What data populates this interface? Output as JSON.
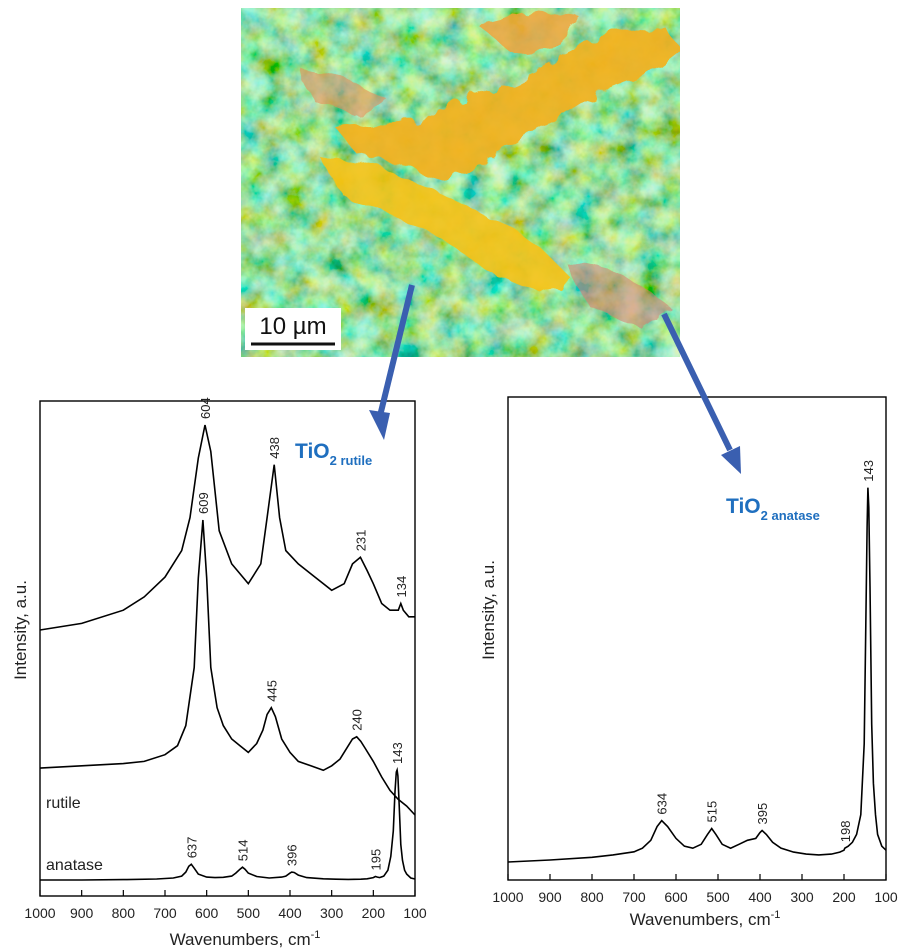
{
  "micrograph": {
    "scale_bar_label": "10 µm",
    "palette": [
      "#f7c21a",
      "#f4a63a",
      "#e38a57",
      "#8fd63a",
      "#5eb82a",
      "#3f8a2a",
      "#7a4fa0",
      "#2e2f2a"
    ]
  },
  "annotations": {
    "rutile": {
      "main": "TiO",
      "sub": "2 rutile"
    },
    "anatase": {
      "main": "TiO",
      "sub": "2 anatase"
    },
    "color": "#1f6fbf",
    "arrow_color": "#3a5fb0"
  },
  "chart_data": [
    {
      "type": "line",
      "xlabel": "Wavenumbers, cm",
      "xlabel_sup": "-1",
      "ylabel": "Intensity, a.u.",
      "xlim": [
        1000,
        100
      ],
      "x_ticks": [
        1000,
        900,
        800,
        700,
        600,
        500,
        400,
        300,
        200,
        100
      ],
      "grid": false,
      "series": [
        {
          "name": "",
          "x": [
            1000,
            900,
            800,
            750,
            700,
            660,
            640,
            620,
            604,
            590,
            570,
            540,
            500,
            470,
            455,
            438,
            425,
            410,
            380,
            340,
            300,
            270,
            250,
            231,
            215,
            200,
            180,
            160,
            150,
            140,
            134,
            128,
            115,
            100
          ],
          "y": [
            0.69,
            0.7,
            0.72,
            0.74,
            0.77,
            0.81,
            0.86,
            0.95,
            1.0,
            0.96,
            0.84,
            0.79,
            0.76,
            0.79,
            0.86,
            0.94,
            0.86,
            0.81,
            0.79,
            0.77,
            0.75,
            0.76,
            0.79,
            0.8,
            0.78,
            0.76,
            0.73,
            0.72,
            0.72,
            0.72,
            0.73,
            0.72,
            0.71,
            0.71
          ],
          "peak_labels": [
            604,
            438,
            231,
            134
          ]
        },
        {
          "name": "rutile",
          "x": [
            1000,
            900,
            800,
            750,
            700,
            670,
            650,
            630,
            620,
            609,
            600,
            590,
            575,
            560,
            540,
            520,
            500,
            480,
            465,
            455,
            445,
            435,
            420,
            400,
            380,
            350,
            320,
            300,
            280,
            260,
            250,
            240,
            230,
            220,
            200,
            180,
            160,
            140,
            120,
            100
          ],
          "y": [
            0.195,
            0.2,
            0.205,
            0.21,
            0.225,
            0.245,
            0.29,
            0.42,
            0.62,
            0.75,
            0.62,
            0.42,
            0.33,
            0.29,
            0.26,
            0.245,
            0.23,
            0.25,
            0.28,
            0.315,
            0.33,
            0.31,
            0.26,
            0.23,
            0.21,
            0.2,
            0.19,
            0.2,
            0.215,
            0.245,
            0.26,
            0.265,
            0.255,
            0.24,
            0.21,
            0.175,
            0.145,
            0.125,
            0.11,
            0.09
          ]
        },
        {
          "name": "anatase",
          "x": [
            1000,
            900,
            800,
            720,
            680,
            660,
            650,
            643,
            637,
            630,
            620,
            600,
            580,
            560,
            540,
            530,
            520,
            514,
            508,
            500,
            480,
            450,
            420,
            410,
            400,
            396,
            390,
            380,
            360,
            320,
            290,
            260,
            230,
            215,
            200,
            195,
            190,
            185,
            175,
            165,
            158,
            152,
            148,
            145,
            143,
            141,
            138,
            134,
            130,
            125,
            120,
            110,
            100
          ],
          "y": [
            0.0,
            0.0,
            0.002,
            0.005,
            0.01,
            0.02,
            0.04,
            0.07,
            0.08,
            0.06,
            0.03,
            0.015,
            0.012,
            0.014,
            0.02,
            0.035,
            0.055,
            0.065,
            0.055,
            0.035,
            0.018,
            0.01,
            0.015,
            0.02,
            0.035,
            0.04,
            0.038,
            0.025,
            0.012,
            0.006,
            0.004,
            0.003,
            0.004,
            0.006,
            0.012,
            0.018,
            0.015,
            0.012,
            0.02,
            0.05,
            0.12,
            0.25,
            0.45,
            0.55,
            0.56,
            0.53,
            0.38,
            0.18,
            0.1,
            0.05,
            0.03,
            0.01,
            0.005
          ],
          "peak_labels": [
            637,
            514,
            396,
            195,
            143
          ]
        }
      ],
      "peak_label_texts": {
        "604": "604",
        "438": "438",
        "231": "231",
        "134": "134",
        "609": "609",
        "445": "445",
        "240": "240",
        "637": "637",
        "514": "514",
        "396": "396",
        "195": "195",
        "143": "143"
      },
      "rutile_peak_labels": [
        609,
        445,
        240
      ],
      "series_labels": [
        "rutile",
        "anatase"
      ]
    },
    {
      "type": "line",
      "xlabel": "Wavenumbers, cm",
      "xlabel_sup": "-1",
      "ylabel": "Intensity, a.u.",
      "xlim": [
        1000,
        100
      ],
      "x_ticks": [
        1000,
        900,
        800,
        700,
        600,
        500,
        400,
        300,
        200,
        100
      ],
      "grid": false,
      "series": [
        {
          "name": "",
          "x": [
            1000,
            900,
            800,
            750,
            700,
            680,
            660,
            645,
            634,
            620,
            600,
            580,
            560,
            540,
            525,
            515,
            505,
            490,
            470,
            450,
            430,
            410,
            400,
            395,
            385,
            370,
            350,
            320,
            290,
            260,
            230,
            210,
            200,
            198,
            190,
            180,
            170,
            160,
            152,
            148,
            145,
            143,
            141,
            138,
            134,
            130,
            125,
            120,
            110,
            100
          ],
          "y": [
            0.0,
            0.005,
            0.012,
            0.018,
            0.026,
            0.035,
            0.055,
            0.09,
            0.105,
            0.09,
            0.06,
            0.04,
            0.035,
            0.045,
            0.07,
            0.085,
            0.07,
            0.045,
            0.035,
            0.045,
            0.055,
            0.06,
            0.075,
            0.08,
            0.07,
            0.05,
            0.035,
            0.025,
            0.02,
            0.018,
            0.02,
            0.025,
            0.03,
            0.035,
            0.04,
            0.05,
            0.07,
            0.12,
            0.3,
            0.6,
            0.85,
            0.95,
            0.9,
            0.7,
            0.35,
            0.2,
            0.12,
            0.07,
            0.04,
            0.03
          ],
          "peak_labels": [
            634,
            515,
            395,
            198,
            143
          ]
        }
      ]
    }
  ]
}
